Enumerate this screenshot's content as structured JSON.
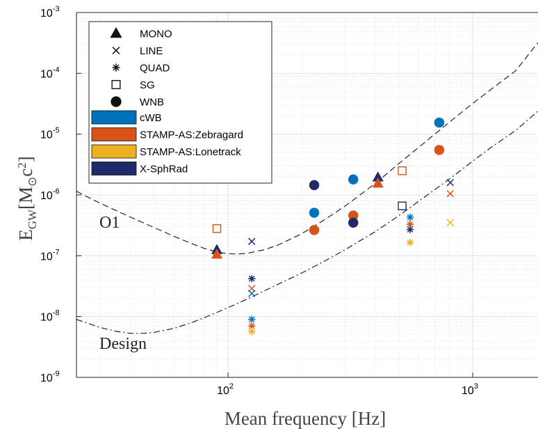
{
  "chart_data": {
    "type": "scatter",
    "xlabel": "Mean frequency [Hz]",
    "ylabel": {
      "base": "E",
      "sub": "GW",
      "unit_open": "[M",
      "unit_sub": "⊙",
      "unit_mid": "c",
      "unit_sup": "2",
      "unit_close": "]"
    },
    "xscale": "log",
    "yscale": "log",
    "xlim": [
      24,
      1850
    ],
    "ylim": [
      1e-09,
      0.001
    ],
    "grid": true,
    "x_ticks": [
      {
        "value": 100,
        "base": "10",
        "exp": "2"
      },
      {
        "value": 1000,
        "base": "10",
        "exp": "3"
      }
    ],
    "y_ticks": [
      {
        "value": 1e-09,
        "base": "10",
        "exp": "-9"
      },
      {
        "value": 1e-08,
        "base": "10",
        "exp": "-8"
      },
      {
        "value": 1e-07,
        "base": "10",
        "exp": "-7"
      },
      {
        "value": 1e-06,
        "base": "10",
        "exp": "-6"
      },
      {
        "value": 1e-05,
        "base": "10",
        "exp": "-5"
      },
      {
        "value": 0.0001,
        "base": "10",
        "exp": "-4"
      },
      {
        "value": 0.001,
        "base": "10",
        "exp": "-3"
      }
    ],
    "legend": {
      "placement": "top-left",
      "markers": [
        {
          "symbol": "triangle",
          "label": "MONO"
        },
        {
          "symbol": "x",
          "label": "LINE"
        },
        {
          "symbol": "asterisk",
          "label": "QUAD"
        },
        {
          "symbol": "square",
          "label": "SG"
        },
        {
          "symbol": "circle",
          "label": "WNB"
        }
      ],
      "pipelines": [
        {
          "key": "cwb",
          "label": "cWB",
          "color": "#0072BD"
        },
        {
          "key": "zebra",
          "label": "STAMP-AS:Zebragard",
          "color": "#D95319"
        },
        {
          "key": "lone",
          "label": "STAMP-AS:Lonetrack",
          "color": "#EDB120"
        },
        {
          "key": "xsph",
          "label": "X-SphRad",
          "color": "#1F2A6B"
        }
      ]
    },
    "curves": [
      {
        "label": "O1",
        "style": "dashed",
        "x": [
          24,
          30,
          40,
          50,
          60,
          70,
          80,
          90,
          100,
          110,
          120,
          140,
          160,
          200,
          250,
          300,
          400,
          500,
          600,
          800,
          1000,
          1200,
          1500,
          1850
        ],
        "y": [
          1.15e-06,
          7.3e-07,
          4.3e-07,
          2.9e-07,
          2.1e-07,
          1.62e-07,
          1.32e-07,
          1.16e-07,
          1.08e-07,
          1.07e-07,
          1.1e-07,
          1.25e-07,
          1.5e-07,
          2.3e-07,
          4e-07,
          6.5e-07,
          1.55e-06,
          3.3e-06,
          6e-06,
          1.55e-05,
          3.2e-05,
          5.6e-05,
          0.00011,
          0.00032
        ]
      },
      {
        "label": "Design",
        "style": "dashdot",
        "x": [
          24,
          30,
          35,
          40,
          45,
          50,
          60,
          70,
          80,
          100,
          120,
          150,
          200,
          250,
          300,
          400,
          500,
          600,
          800,
          1000,
          1200,
          1500,
          1850
        ],
        "y": [
          9e-09,
          6.6e-09,
          5.7e-09,
          5.3e-09,
          5.3e-09,
          5.5e-09,
          6.4e-09,
          7.8e-09,
          9.6e-09,
          1.4e-08,
          1.95e-08,
          3e-08,
          5.2e-08,
          8.3e-08,
          1.25e-07,
          2.5e-07,
          4.6e-07,
          7.8e-07,
          1.8e-06,
          3.6e-06,
          6.2e-06,
          1.15e-05,
          2.4e-05
        ]
      }
    ],
    "points": [
      {
        "x": 90,
        "y": 1.25e-07,
        "symbol": "triangle",
        "pipeline": "xsph"
      },
      {
        "x": 90,
        "y": 1.05e-07,
        "symbol": "triangle",
        "pipeline": "zebra"
      },
      {
        "x": 90,
        "y": 2.8e-07,
        "symbol": "square",
        "pipeline": "zebra"
      },
      {
        "x": 125,
        "y": 1.72e-07,
        "symbol": "x",
        "pipeline": "xsph"
      },
      {
        "x": 125,
        "y": 2.9e-08,
        "symbol": "x",
        "pipeline": "zebra"
      },
      {
        "x": 125,
        "y": 2.4e-08,
        "symbol": "x",
        "pipeline": "cwb"
      },
      {
        "x": 125,
        "y": 4.2e-08,
        "symbol": "asterisk",
        "pipeline": "xsph"
      },
      {
        "x": 125,
        "y": 9e-09,
        "symbol": "asterisk",
        "pipeline": "cwb"
      },
      {
        "x": 125,
        "y": 7e-09,
        "symbol": "asterisk",
        "pipeline": "zebra"
      },
      {
        "x": 125,
        "y": 5.7e-09,
        "symbol": "asterisk",
        "pipeline": "lone"
      },
      {
        "x": 225,
        "y": 1.45e-06,
        "symbol": "circle",
        "pipeline": "xsph"
      },
      {
        "x": 225,
        "y": 5.1e-07,
        "symbol": "circle",
        "pipeline": "cwb"
      },
      {
        "x": 225,
        "y": 2.65e-07,
        "symbol": "circle",
        "pipeline": "zebra"
      },
      {
        "x": 325,
        "y": 1.8e-06,
        "symbol": "circle",
        "pipeline": "cwb"
      },
      {
        "x": 325,
        "y": 4.6e-07,
        "symbol": "circle",
        "pipeline": "zebra"
      },
      {
        "x": 325,
        "y": 3.5e-07,
        "symbol": "circle",
        "pipeline": "xsph"
      },
      {
        "x": 410,
        "y": 1.95e-06,
        "symbol": "triangle",
        "pipeline": "xsph"
      },
      {
        "x": 410,
        "y": 1.55e-06,
        "symbol": "triangle",
        "pipeline": "zebra"
      },
      {
        "x": 515,
        "y": 2.5e-06,
        "symbol": "square",
        "pipeline": "zebra"
      },
      {
        "x": 515,
        "y": 6.6e-07,
        "symbol": "square",
        "pipeline": "xsph"
      },
      {
        "x": 555,
        "y": 4.3e-07,
        "symbol": "asterisk",
        "pipeline": "cwb"
      },
      {
        "x": 555,
        "y": 3.3e-07,
        "symbol": "asterisk",
        "pipeline": "zebra"
      },
      {
        "x": 555,
        "y": 2.7e-07,
        "symbol": "asterisk",
        "pipeline": "xsph"
      },
      {
        "x": 555,
        "y": 1.65e-07,
        "symbol": "asterisk",
        "pipeline": "lone"
      },
      {
        "x": 730,
        "y": 1.55e-05,
        "symbol": "circle",
        "pipeline": "cwb"
      },
      {
        "x": 730,
        "y": 5.5e-06,
        "symbol": "circle",
        "pipeline": "zebra"
      },
      {
        "x": 810,
        "y": 1.6e-06,
        "symbol": "x",
        "pipeline": "xsph"
      },
      {
        "x": 810,
        "y": 1.05e-06,
        "symbol": "x",
        "pipeline": "zebra"
      },
      {
        "x": 810,
        "y": 3.5e-07,
        "symbol": "x",
        "pipeline": "lone"
      }
    ]
  }
}
